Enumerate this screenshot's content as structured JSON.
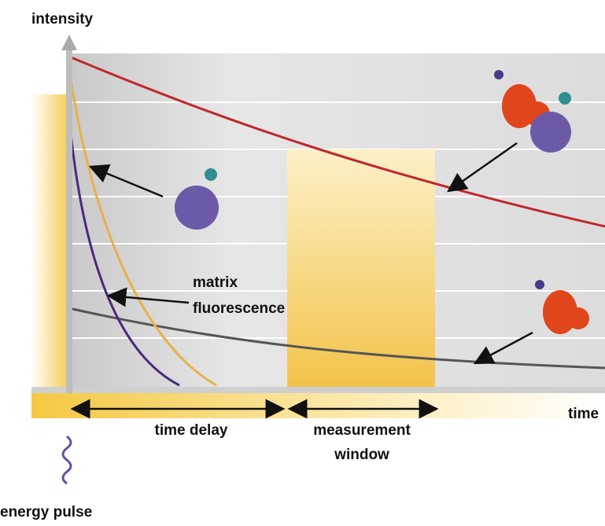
{
  "axes": {
    "y_label": "intensity",
    "x_label": "time"
  },
  "annotations": {
    "matrix_fluorescence": [
      "matrix",
      "fluorescence"
    ],
    "time_delay": "time delay",
    "measurement_window": [
      "measurement",
      "window"
    ],
    "energy_pulse": "energy pulse"
  }
}
